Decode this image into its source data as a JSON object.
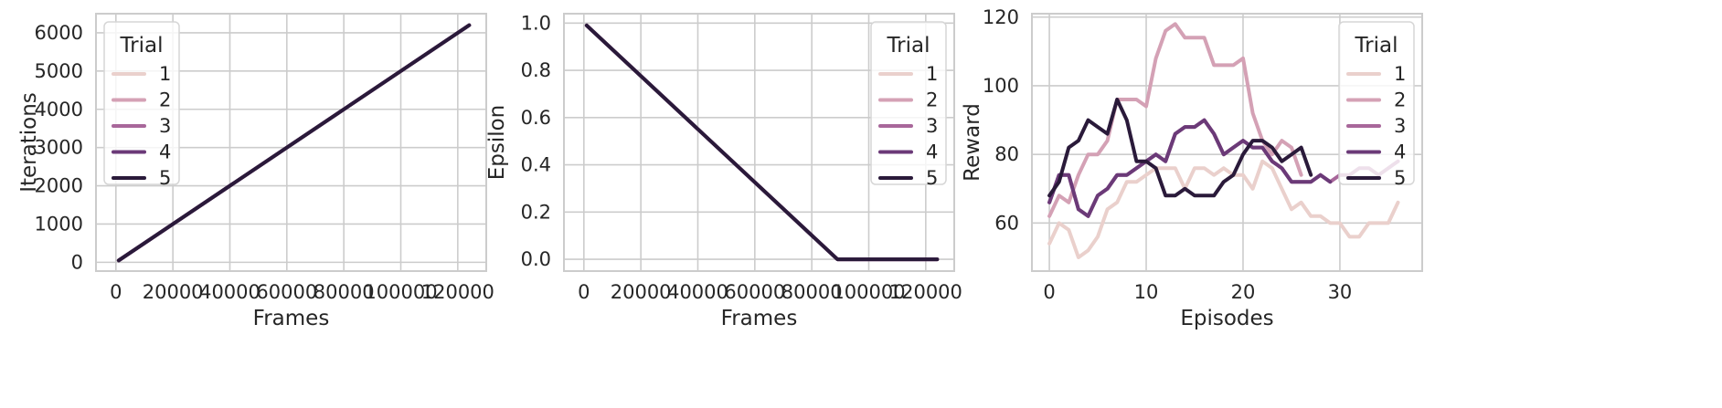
{
  "chart_data": [
    {
      "type": "line",
      "xlabel": "Frames",
      "ylabel": "Iterations",
      "xlim": [
        -7000,
        130000
      ],
      "ylim": [
        -230,
        6500
      ],
      "xticks": [
        0,
        20000,
        40000,
        60000,
        80000,
        100000,
        120000
      ],
      "yticks": [
        0,
        1000,
        2000,
        3000,
        4000,
        5000,
        6000
      ],
      "grid": true,
      "legend": {
        "title": "Trial",
        "position": "top-left"
      },
      "series": [
        {
          "name": "1",
          "color": "#ead0cc",
          "x": [
            1000,
            124000
          ],
          "y": [
            50,
            6200
          ]
        },
        {
          "name": "2",
          "color": "#d4a1b5",
          "x": [
            1000,
            124000
          ],
          "y": [
            50,
            6200
          ]
        },
        {
          "name": "3",
          "color": "#a8679a",
          "x": [
            1000,
            124000
          ],
          "y": [
            50,
            6200
          ]
        },
        {
          "name": "4",
          "color": "#6b3a78",
          "x": [
            1000,
            124000
          ],
          "y": [
            50,
            6200
          ]
        },
        {
          "name": "5",
          "color": "#2a1a3a",
          "x": [
            1000,
            124000
          ],
          "y": [
            50,
            6200
          ]
        }
      ]
    },
    {
      "type": "line",
      "xlabel": "Frames",
      "ylabel": "Epsilon",
      "xlim": [
        -7000,
        130000
      ],
      "ylim": [
        -0.05,
        1.04
      ],
      "xticks": [
        0,
        20000,
        40000,
        60000,
        80000,
        100000,
        120000
      ],
      "yticks": [
        0.0,
        0.2,
        0.4,
        0.6,
        0.8,
        1.0
      ],
      "ytick_labels": [
        "0.0",
        "0.2",
        "0.4",
        "0.6",
        "0.8",
        "1.0"
      ],
      "grid": true,
      "legend": {
        "title": "Trial",
        "position": "top-right"
      },
      "series": [
        {
          "name": "1",
          "color": "#ead0cc",
          "x": [
            1000,
            89000,
            124000
          ],
          "y": [
            0.99,
            0.0,
            0.0
          ]
        },
        {
          "name": "2",
          "color": "#d4a1b5",
          "x": [
            1000,
            89000,
            124000
          ],
          "y": [
            0.99,
            0.0,
            0.0
          ]
        },
        {
          "name": "3",
          "color": "#a8679a",
          "x": [
            1000,
            89000,
            124000
          ],
          "y": [
            0.99,
            0.0,
            0.0
          ]
        },
        {
          "name": "4",
          "color": "#6b3a78",
          "x": [
            1000,
            89000,
            124000
          ],
          "y": [
            0.99,
            0.0,
            0.0
          ]
        },
        {
          "name": "5",
          "color": "#2a1a3a",
          "x": [
            1000,
            89000,
            124000
          ],
          "y": [
            0.99,
            0.0,
            0.0
          ]
        }
      ]
    },
    {
      "type": "line",
      "xlabel": "Episodes",
      "ylabel": "Reward",
      "xlim": [
        -1.8,
        38.5
      ],
      "ylim": [
        46,
        121
      ],
      "xticks": [
        0,
        10,
        20,
        30
      ],
      "yticks": [
        60,
        80,
        100,
        120
      ],
      "grid": true,
      "legend": {
        "title": "Trial",
        "position": "top-right"
      },
      "series": [
        {
          "name": "1",
          "color": "#ead0cc",
          "x": [
            0,
            1,
            2,
            3,
            4,
            5,
            6,
            7,
            8,
            9,
            10,
            11,
            12,
            13,
            14,
            15,
            16,
            17,
            18,
            19,
            20,
            21,
            22,
            23,
            24,
            25,
            26,
            27,
            28,
            29,
            30,
            31,
            32,
            33,
            34,
            35,
            36
          ],
          "y": [
            54,
            60,
            58,
            50,
            52,
            56,
            64,
            66,
            72,
            72,
            74,
            76,
            76,
            76,
            70,
            76,
            76,
            74,
            76,
            74,
            74,
            70,
            78,
            76,
            70,
            64,
            66,
            62,
            62,
            60,
            60,
            56,
            56,
            60,
            60,
            60,
            66
          ]
        },
        {
          "name": "2",
          "color": "#d4a1b5",
          "x": [
            0,
            1,
            2,
            3,
            4,
            5,
            6,
            7,
            8,
            9,
            10,
            11,
            12,
            13,
            14,
            15,
            16,
            17,
            18,
            19,
            20,
            21,
            22,
            23,
            24,
            25,
            26
          ],
          "y": [
            62,
            68,
            66,
            74,
            80,
            80,
            84,
            96,
            96,
            96,
            94,
            108,
            116,
            118,
            114,
            114,
            114,
            106,
            106,
            106,
            108,
            92,
            84,
            80,
            84,
            82,
            74
          ]
        },
        {
          "name": "3",
          "color": "#a8679a",
          "x": [
            0,
            1,
            2,
            3,
            4,
            5,
            6,
            7,
            8,
            9,
            10,
            11,
            12,
            13,
            14,
            15,
            16,
            17,
            18,
            19,
            20,
            21,
            22,
            23,
            24,
            25,
            26,
            27,
            28,
            29,
            30,
            31,
            32,
            33,
            34,
            35,
            36
          ],
          "y": [
            66,
            74,
            74,
            64,
            62,
            68,
            70,
            74,
            74,
            76,
            78,
            80,
            78,
            86,
            88,
            88,
            90,
            86,
            80,
            82,
            84,
            82,
            82,
            78,
            76,
            72,
            72,
            72,
            74,
            72,
            74,
            74,
            76,
            76,
            74,
            76,
            78
          ]
        },
        {
          "name": "4",
          "color": "#6b3a78",
          "x": [
            0,
            1,
            2,
            3,
            4,
            5,
            6,
            7,
            8,
            9,
            10,
            11,
            12,
            13,
            14,
            15,
            16,
            17,
            18,
            19,
            20,
            21,
            22,
            23,
            24,
            25,
            26,
            27,
            28,
            29
          ],
          "y": [
            66,
            74,
            74,
            64,
            62,
            68,
            70,
            74,
            74,
            76,
            78,
            80,
            78,
            86,
            88,
            88,
            90,
            86,
            80,
            82,
            84,
            82,
            82,
            78,
            76,
            72,
            72,
            72,
            74,
            72
          ]
        },
        {
          "name": "5",
          "color": "#2a1a3a",
          "x": [
            0,
            1,
            2,
            3,
            4,
            5,
            6,
            7,
            8,
            9,
            10,
            11,
            12,
            13,
            14,
            15,
            16,
            17,
            18,
            19,
            20,
            21,
            22,
            23,
            24,
            25,
            26,
            27
          ],
          "y": [
            68,
            72,
            82,
            84,
            90,
            88,
            86,
            96,
            90,
            78,
            78,
            76,
            68,
            68,
            70,
            68,
            68,
            68,
            72,
            74,
            80,
            84,
            84,
            82,
            78,
            80,
            82,
            74
          ]
        }
      ]
    }
  ]
}
